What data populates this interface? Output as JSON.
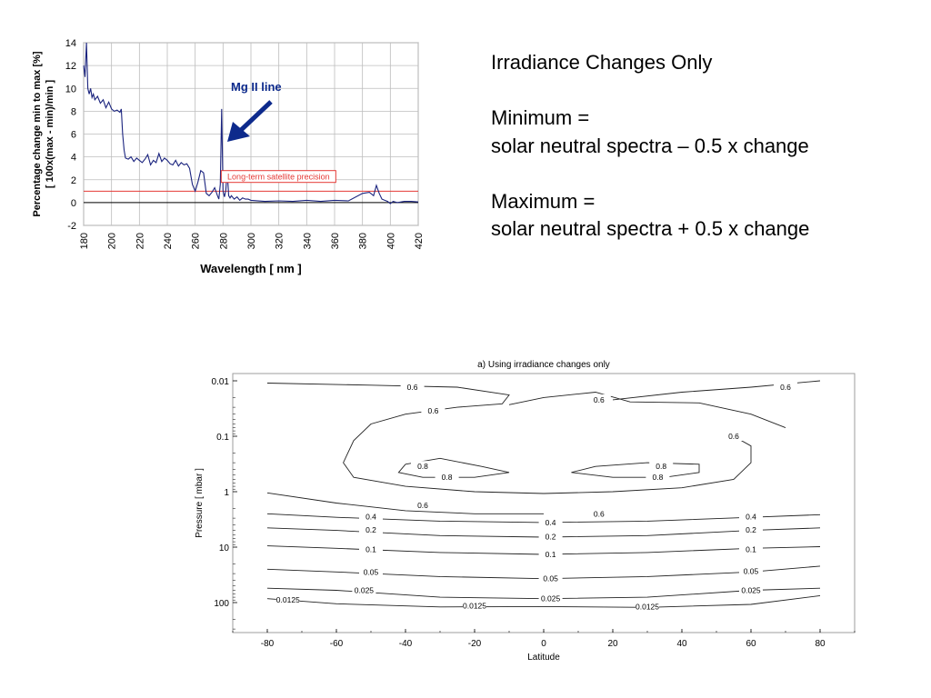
{
  "slide_text": {
    "heading": "Irradiance Changes Only",
    "minimum_label": "Minimum =",
    "minimum_formula": "solar neutral spectra – 0.5 x change",
    "maximum_label": "Maximum =",
    "maximum_formula": "solar neutral spectra + 0.5 x change"
  },
  "chart_data": [
    {
      "type": "line",
      "xlabel": "Wavelength [ nm ]",
      "ylabel": "Percentage change min to max [%]",
      "ylabel2": "[ 100x(max - min)/min ]",
      "xlim": [
        180,
        420
      ],
      "ylim": [
        -2,
        14
      ],
      "x_ticks": [
        "180",
        "200",
        "220",
        "240",
        "260",
        "280",
        "300",
        "320",
        "340",
        "360",
        "380",
        "400",
        "420"
      ],
      "y_ticks": [
        "14",
        "12",
        "10",
        "8",
        "6",
        "4",
        "2",
        "0",
        "-2"
      ],
      "grid": true,
      "annotation_mg": "Mg II line",
      "precision_label": "Long-term satellite precision",
      "precision_value": 1,
      "colors": {
        "line": "#1a237e",
        "precision": "#e53935",
        "arrow": "#0d2a8c",
        "annotation": "#0d2a8c"
      },
      "series": [
        {
          "x": [
            180,
            181,
            182,
            183,
            184,
            185,
            186,
            187,
            188,
            190,
            192,
            194,
            196,
            198,
            200,
            202,
            204,
            206,
            207,
            208,
            209,
            210,
            212,
            214,
            216,
            218,
            220,
            222,
            224,
            226,
            228,
            230,
            232,
            234,
            236,
            238,
            240,
            242,
            244,
            246,
            248,
            250,
            252,
            254,
            256,
            258,
            260,
            262,
            264,
            266,
            268,
            270,
            272,
            274,
            276,
            277,
            278,
            279,
            280,
            281,
            282,
            283,
            284,
            285,
            286,
            288,
            290,
            292,
            294,
            296,
            298,
            300,
            310,
            320,
            330,
            340,
            350,
            360,
            370,
            380,
            385,
            388,
            390,
            392,
            394,
            396,
            398,
            400,
            402,
            405,
            410,
            415,
            420
          ],
          "y": [
            12.0,
            11.0,
            14.0,
            10.0,
            9.5,
            10.0,
            9.2,
            9.5,
            9.0,
            9.3,
            8.7,
            9.0,
            8.3,
            8.8,
            8.2,
            8.0,
            8.1,
            7.9,
            8.2,
            6.0,
            4.6,
            3.9,
            3.8,
            4.0,
            3.6,
            3.9,
            3.7,
            3.5,
            3.8,
            4.2,
            3.3,
            3.7,
            3.5,
            4.3,
            3.6,
            3.9,
            3.7,
            3.4,
            3.3,
            3.7,
            3.2,
            3.5,
            3.3,
            3.4,
            3.0,
            1.6,
            1.0,
            1.8,
            2.8,
            2.6,
            0.8,
            0.6,
            0.9,
            1.3,
            0.6,
            0.3,
            1.6,
            8.2,
            1.0,
            0.5,
            1.1,
            2.8,
            0.6,
            0.4,
            0.6,
            0.3,
            0.5,
            0.2,
            0.4,
            0.3,
            0.3,
            0.2,
            0.1,
            0.15,
            0.1,
            0.2,
            0.1,
            0.2,
            0.15,
            0.8,
            0.9,
            0.6,
            1.5,
            0.8,
            0.3,
            0.2,
            0.1,
            -0.1,
            0.1,
            0.0,
            0.1,
            0.1,
            0.05
          ]
        }
      ]
    },
    {
      "type": "contour",
      "title": "a) Using irradiance changes only",
      "xlabel": "Latitude",
      "ylabel": "Pressure [ mbar ]",
      "xlim": [
        -90,
        90
      ],
      "x_ticks": [
        "-80",
        "-60",
        "-40",
        "-20",
        "0",
        "20",
        "40",
        "60",
        "80"
      ],
      "y_ticks": [
        "0.01",
        "0.1",
        "1",
        "10",
        "100"
      ],
      "y_scale": "log",
      "ylim": [
        300,
        0.008
      ],
      "contour_levels": [
        "0.8",
        "0.6",
        "0.4",
        "0.2",
        "0.1",
        "0.05",
        "0.025",
        "0.0125"
      ]
    }
  ]
}
